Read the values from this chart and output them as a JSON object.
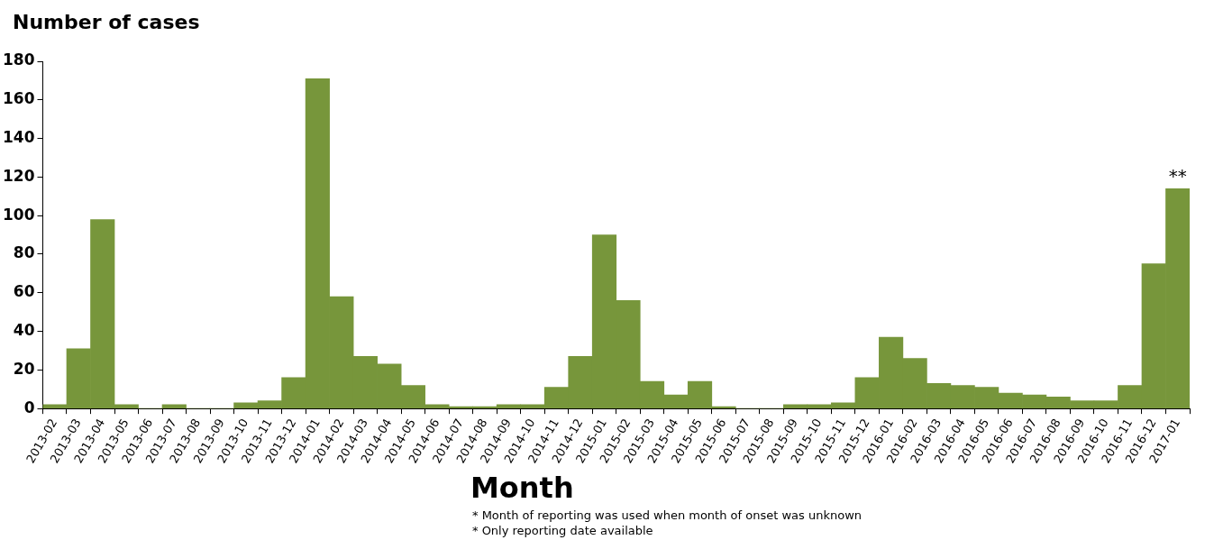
{
  "chart_data": {
    "type": "bar",
    "ylabel": "Number of cases",
    "xlabel": "Month",
    "categories": [
      "2013-02",
      "2013-03",
      "2013-04",
      "2013-05",
      "2013-06",
      "2013-07",
      "2013-08",
      "2013-09",
      "2013-10",
      "2013-11",
      "2013-12",
      "2014-01",
      "2014-02",
      "2014-03",
      "2014-04",
      "2014-05",
      "2014-06",
      "2014-07",
      "2014-08",
      "2014-09",
      "2014-10",
      "2014-11",
      "2014-12",
      "2015-01",
      "2015-02",
      "2015-03",
      "2015-04",
      "2015-05",
      "2015-06",
      "2015-07",
      "2015-08",
      "2015-09",
      "2015-10",
      "2015-11",
      "2015-12",
      "2016-01",
      "2016-02",
      "2016-03",
      "2016-04",
      "2016-05",
      "2016-06",
      "2016-07",
      "2016-08",
      "2016-09",
      "2016-10",
      "2016-11",
      "2016-12",
      "2017-01"
    ],
    "values": [
      2,
      31,
      98,
      2,
      0,
      2,
      0,
      0,
      3,
      4,
      16,
      171,
      58,
      27,
      23,
      12,
      2,
      1,
      1,
      2,
      2,
      11,
      27,
      90,
      56,
      14,
      7,
      14,
      1,
      0,
      0,
      2,
      2,
      3,
      16,
      37,
      26,
      13,
      12,
      11,
      8,
      7,
      6,
      4,
      4,
      12,
      75,
      114
    ],
    "color": "#77963b",
    "ylim": [
      0,
      180
    ],
    "yticks": [
      0,
      20,
      40,
      60,
      80,
      100,
      120,
      140,
      160,
      180
    ],
    "grid": false,
    "legend": false,
    "annotations": [
      {
        "text": "**",
        "x": "2017-01",
        "y": 114
      },
      "* Month of reporting was used when month of onset was unknown",
      "* Only reporting date available"
    ]
  }
}
